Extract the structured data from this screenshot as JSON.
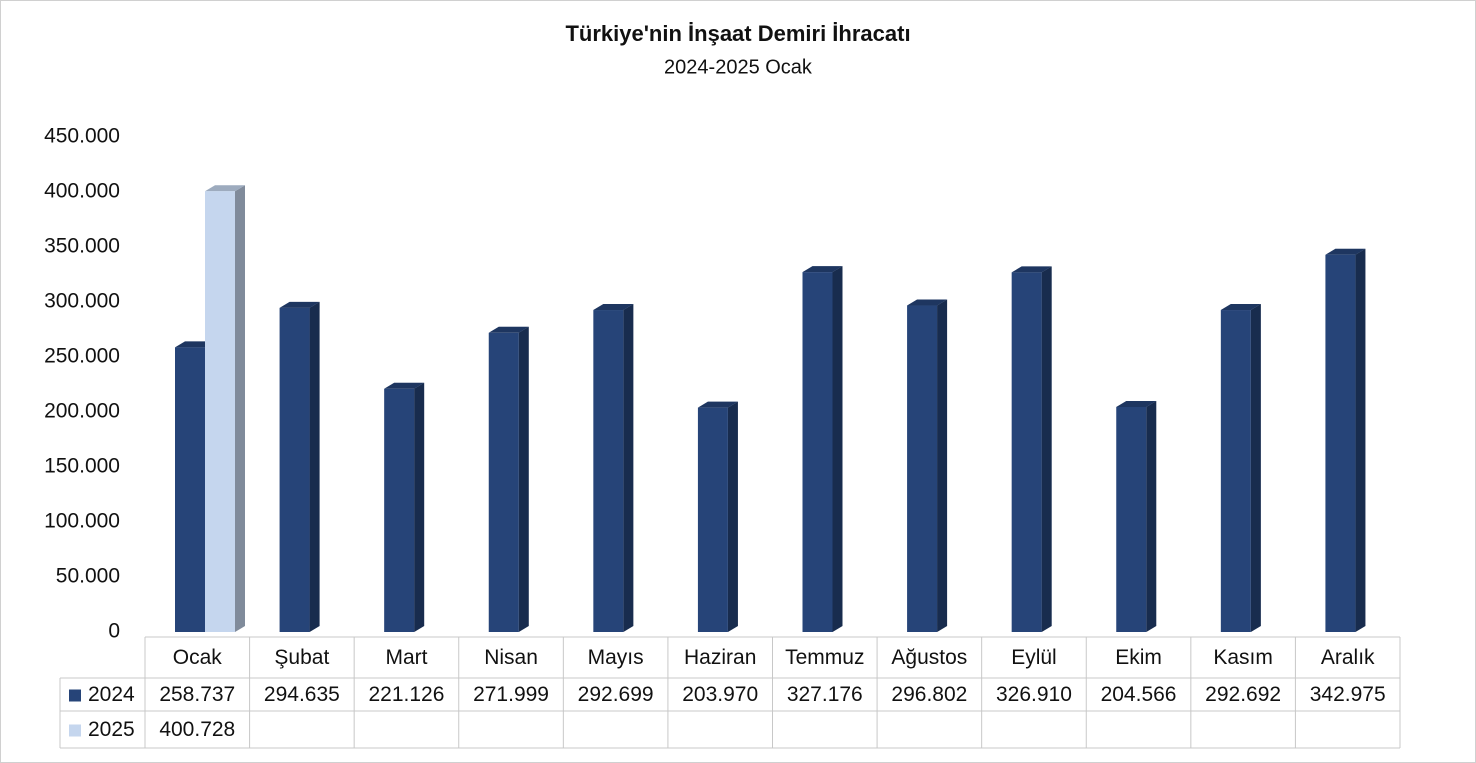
{
  "chart_data": {
    "type": "bar3d",
    "title": "Türkiye'nin İnşaat Demiri İhracatı",
    "subtitle": "2024-2025 Ocak",
    "categories": [
      "Ocak",
      "Şubat",
      "Mart",
      "Nisan",
      "Mayıs",
      "Haziran",
      "Temmuz",
      "Ağustos",
      "Eylül",
      "Ekim",
      "Kasım",
      "Aralık"
    ],
    "series": [
      {
        "name": "2024",
        "color": "#264478",
        "values": [
          258737,
          294635,
          221126,
          271999,
          292699,
          203970,
          327176,
          296802,
          326910,
          204566,
          292692,
          342975
        ],
        "value_labels": [
          "258.737",
          "294.635",
          "221.126",
          "271.999",
          "292.699",
          "203.970",
          "327.176",
          "296.802",
          "326.910",
          "204.566",
          "292.692",
          "342.975"
        ]
      },
      {
        "name": "2025",
        "color": "#c5d6ee",
        "values": [
          400728,
          null,
          null,
          null,
          null,
          null,
          null,
          null,
          null,
          null,
          null,
          null
        ],
        "value_labels": [
          "400.728",
          null,
          null,
          null,
          null,
          null,
          null,
          null,
          null,
          null,
          null,
          null
        ]
      }
    ],
    "ylim": [
      0,
      450000
    ],
    "yticks": [
      0,
      {
        "value": 50000,
        "label": "50.000"
      },
      {
        "value": 100000,
        "label": "100.000"
      },
      {
        "value": 150000,
        "label": "150.000"
      },
      {
        "value": 200000,
        "label": "200.000"
      },
      {
        "value": 250000,
        "label": "250.000"
      },
      {
        "value": 300000,
        "label": "300.000"
      },
      {
        "value": 350000,
        "label": "350.000"
      },
      {
        "value": 400000,
        "label": "400.000"
      },
      {
        "value": 450000,
        "label": "450.000"
      }
    ]
  }
}
